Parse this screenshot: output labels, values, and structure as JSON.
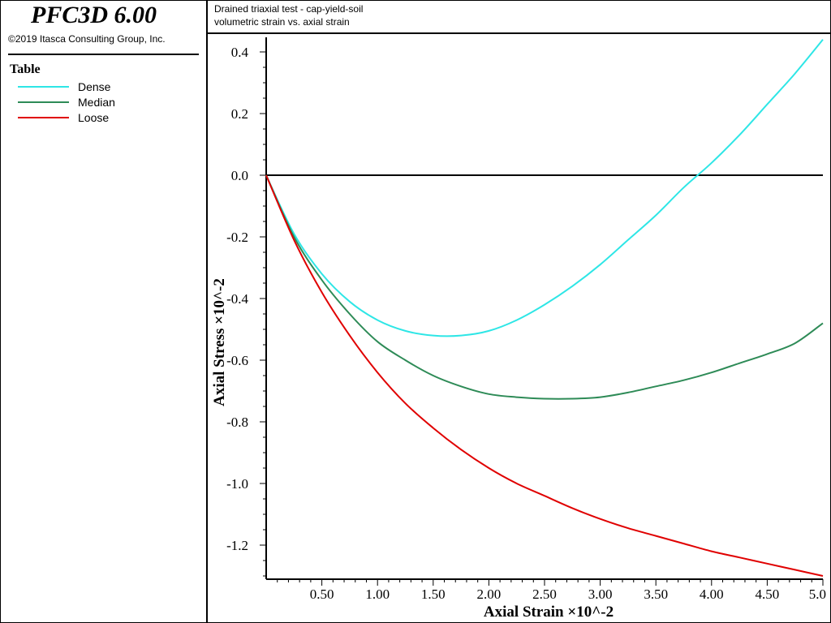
{
  "app": {
    "title": "PFC3D 6.00",
    "copyright": "©2019 Itasca Consulting Group, Inc."
  },
  "legend": {
    "title": "Table",
    "items": [
      {
        "label": "Dense",
        "color": "#2ee6e6"
      },
      {
        "label": "Median",
        "color": "#2e8b57"
      },
      {
        "label": "Loose",
        "color": "#e00000"
      }
    ]
  },
  "chart_data": {
    "type": "line",
    "title": "Drained triaxial test - cap-yield-soil",
    "subtitle": "volumetric strain vs. axial strain",
    "xlabel": "Axial Strain ×10^-2",
    "ylabel": "Axial Stress ×10^-2",
    "xlim": [
      0,
      5.0
    ],
    "ylim": [
      -1.3,
      0.45
    ],
    "x_ticks": [
      "0.50",
      "1.00",
      "1.50",
      "2.00",
      "2.50",
      "3.00",
      "3.50",
      "4.00",
      "4.50",
      "5.0"
    ],
    "y_ticks": [
      "0.4",
      "0.2",
      "0.0",
      "-0.2",
      "-0.4",
      "-0.6",
      "-0.8",
      "-1.0",
      "-1.2"
    ],
    "zero_line": true,
    "grid": false,
    "legend_position": "left-panel",
    "series": [
      {
        "name": "Dense",
        "color": "#2ee6e6",
        "x": [
          0,
          0.25,
          0.5,
          0.75,
          1.0,
          1.25,
          1.5,
          1.75,
          2.0,
          2.25,
          2.5,
          2.75,
          3.0,
          3.25,
          3.5,
          3.75,
          4.0,
          4.25,
          4.5,
          4.75,
          5.0
        ],
        "y": [
          0.0,
          -0.19,
          -0.32,
          -0.41,
          -0.47,
          -0.505,
          -0.52,
          -0.52,
          -0.505,
          -0.47,
          -0.42,
          -0.36,
          -0.29,
          -0.21,
          -0.13,
          -0.04,
          0.04,
          0.13,
          0.23,
          0.33,
          0.44
        ]
      },
      {
        "name": "Median",
        "color": "#2e8b57",
        "x": [
          0,
          0.25,
          0.5,
          0.75,
          1.0,
          1.25,
          1.5,
          1.75,
          2.0,
          2.25,
          2.5,
          2.75,
          3.0,
          3.25,
          3.5,
          3.75,
          4.0,
          4.25,
          4.5,
          4.75,
          5.0
        ],
        "y": [
          0.0,
          -0.2,
          -0.34,
          -0.45,
          -0.54,
          -0.6,
          -0.65,
          -0.685,
          -0.71,
          -0.72,
          -0.725,
          -0.725,
          -0.72,
          -0.705,
          -0.685,
          -0.665,
          -0.64,
          -0.61,
          -0.58,
          -0.545,
          -0.48
        ]
      },
      {
        "name": "Loose",
        "color": "#e00000",
        "x": [
          0,
          0.25,
          0.5,
          0.75,
          1.0,
          1.25,
          1.5,
          1.75,
          2.0,
          2.25,
          2.5,
          2.75,
          3.0,
          3.25,
          3.5,
          3.75,
          4.0,
          4.25,
          4.5,
          4.75,
          5.0
        ],
        "y": [
          0.0,
          -0.21,
          -0.38,
          -0.52,
          -0.64,
          -0.74,
          -0.82,
          -0.89,
          -0.95,
          -1.0,
          -1.04,
          -1.08,
          -1.115,
          -1.145,
          -1.17,
          -1.195,
          -1.22,
          -1.24,
          -1.26,
          -1.28,
          -1.3
        ]
      }
    ]
  }
}
